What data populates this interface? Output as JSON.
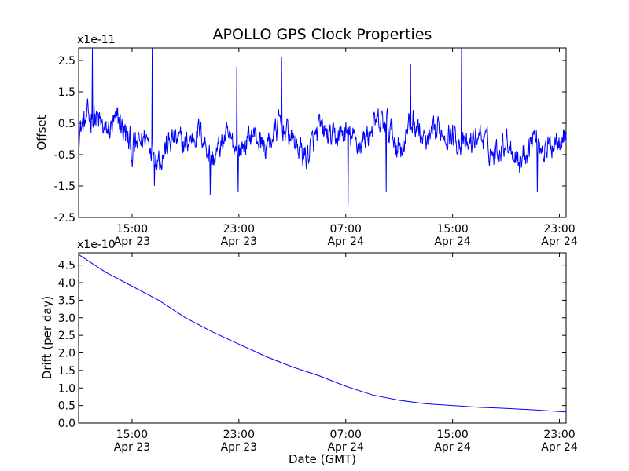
{
  "chart_data": [
    {
      "type": "line",
      "title": "APOLLO GPS Clock Properties",
      "xlabel": "",
      "ylabel": "Offset",
      "y_exponent_label": "x1e-11",
      "ylim": [
        -2.5,
        2.9
      ],
      "yticks": [
        {
          "value": -2.5,
          "label": "-2.5"
        },
        {
          "value": -1.5,
          "label": "-1.5"
        },
        {
          "value": -0.5,
          "label": "-0.5"
        },
        {
          "value": 0.5,
          "label": "0.5"
        },
        {
          "value": 1.5,
          "label": "1.5"
        },
        {
          "value": 2.5,
          "label": "2.5"
        }
      ],
      "xlim": [
        "2012-04-23T11:00",
        "2012-04-24T23:30"
      ],
      "xticks": [
        {
          "value": "2012-04-23T15:00",
          "label_time": "15:00",
          "label_date": "Apr 23"
        },
        {
          "value": "2012-04-23T23:00",
          "label_time": "23:00",
          "label_date": "Apr 23"
        },
        {
          "value": "2012-04-24T07:00",
          "label_time": "07:00",
          "label_date": "Apr 24"
        },
        {
          "value": "2012-04-24T15:00",
          "label_time": "15:00",
          "label_date": "Apr 24"
        },
        {
          "value": "2012-04-24T23:00",
          "label_time": "23:00",
          "label_date": "Apr 24"
        }
      ],
      "grid": false,
      "series": [
        {
          "color": "#0000ff",
          "x": [
            "2012-04-23T11:00",
            "2012-04-23T12:00",
            "2012-04-23T13:00",
            "2012-04-23T14:00",
            "2012-04-23T15:00",
            "2012-04-23T16:00",
            "2012-04-23T17:00",
            "2012-04-23T18:00",
            "2012-04-23T19:00",
            "2012-04-23T20:00",
            "2012-04-23T21:00",
            "2012-04-23T22:00",
            "2012-04-23T23:00",
            "2012-04-24T00:00",
            "2012-04-24T01:00",
            "2012-04-24T02:00",
            "2012-04-24T03:00",
            "2012-04-24T04:00",
            "2012-04-24T05:00",
            "2012-04-24T06:00",
            "2012-04-24T07:00",
            "2012-04-24T08:00",
            "2012-04-24T09:00",
            "2012-04-24T10:00",
            "2012-04-24T11:00",
            "2012-04-24T12:00",
            "2012-04-24T13:00",
            "2012-04-24T14:00",
            "2012-04-24T15:00",
            "2012-04-24T16:00",
            "2012-04-24T17:00",
            "2012-04-24T18:00",
            "2012-04-24T19:00",
            "2012-04-24T20:00",
            "2012-04-24T21:00",
            "2012-04-24T22:00",
            "2012-04-24T23:00",
            "2012-04-24T23:30"
          ],
          "y": [
            0.3,
            0.8,
            0.2,
            0.6,
            -0.4,
            0.1,
            -0.6,
            0.0,
            -0.2,
            0.3,
            -0.7,
            0.1,
            -0.4,
            0.2,
            -0.3,
            0.5,
            0.0,
            -0.6,
            0.3,
            0.0,
            0.2,
            -0.2,
            0.4,
            0.5,
            -0.3,
            0.6,
            -0.2,
            0.3,
            0.1,
            -0.3,
            0.2,
            -0.5,
            0.0,
            -0.7,
            0.1,
            -0.4,
            0.2,
            0.1
          ],
          "y_band": [
            0.7,
            1.1,
            0.7,
            0.9,
            1.0,
            0.7,
            0.9,
            0.8,
            0.8,
            0.7,
            0.8,
            0.7,
            0.7,
            0.7,
            0.8,
            0.8,
            0.7,
            0.8,
            0.8,
            0.7,
            0.8,
            0.7,
            0.8,
            0.9,
            0.9,
            0.8,
            0.8,
            0.8,
            0.8,
            0.7,
            0.7,
            0.8,
            0.7,
            0.9,
            0.8,
            0.8,
            0.8,
            0.7
          ],
          "spikes": [
            {
              "x": "2012-04-23T12:00",
              "y": 2.9
            },
            {
              "x": "2012-04-23T16:30",
              "y": 2.9
            },
            {
              "x": "2012-04-23T16:40",
              "y": -1.5
            },
            {
              "x": "2012-04-23T20:50",
              "y": -1.8
            },
            {
              "x": "2012-04-23T22:50",
              "y": 2.3
            },
            {
              "x": "2012-04-23T22:55",
              "y": -1.7
            },
            {
              "x": "2012-04-24T02:10",
              "y": 2.6
            },
            {
              "x": "2012-04-24T07:10",
              "y": -2.1
            },
            {
              "x": "2012-04-24T10:00",
              "y": -1.7
            },
            {
              "x": "2012-04-24T11:50",
              "y": 2.4
            },
            {
              "x": "2012-04-24T15:40",
              "y": 2.9
            },
            {
              "x": "2012-04-24T21:20",
              "y": -1.7
            }
          ]
        }
      ]
    },
    {
      "type": "line",
      "title": "",
      "xlabel": "Date (GMT)",
      "ylabel": "Drift (per day)",
      "y_exponent_label": "x1e-10",
      "ylim": [
        0.0,
        4.85
      ],
      "yticks": [
        {
          "value": 0.0,
          "label": "0.0"
        },
        {
          "value": 0.5,
          "label": "0.5"
        },
        {
          "value": 1.0,
          "label": "1.0"
        },
        {
          "value": 1.5,
          "label": "1.5"
        },
        {
          "value": 2.0,
          "label": "2.0"
        },
        {
          "value": 2.5,
          "label": "2.5"
        },
        {
          "value": 3.0,
          "label": "3.0"
        },
        {
          "value": 3.5,
          "label": "3.5"
        },
        {
          "value": 4.0,
          "label": "4.0"
        },
        {
          "value": 4.5,
          "label": "4.5"
        }
      ],
      "xlim": [
        "2012-04-23T11:00",
        "2012-04-24T23:30"
      ],
      "xticks": [
        {
          "value": "2012-04-23T15:00",
          "label_time": "15:00",
          "label_date": "Apr 23"
        },
        {
          "value": "2012-04-23T23:00",
          "label_time": "23:00",
          "label_date": "Apr 23"
        },
        {
          "value": "2012-04-24T07:00",
          "label_time": "07:00",
          "label_date": "Apr 24"
        },
        {
          "value": "2012-04-24T15:00",
          "label_time": "15:00",
          "label_date": "Apr 24"
        },
        {
          "value": "2012-04-24T23:00",
          "label_time": "23:00",
          "label_date": "Apr 24"
        }
      ],
      "grid": false,
      "series": [
        {
          "color": "#0000ff",
          "x": [
            "2012-04-23T11:00",
            "2012-04-23T13:00",
            "2012-04-23T15:00",
            "2012-04-23T17:00",
            "2012-04-23T19:00",
            "2012-04-23T21:00",
            "2012-04-23T23:00",
            "2012-04-24T01:00",
            "2012-04-24T03:00",
            "2012-04-24T05:00",
            "2012-04-24T07:00",
            "2012-04-24T09:00",
            "2012-04-24T11:00",
            "2012-04-24T13:00",
            "2012-04-24T15:00",
            "2012-04-24T17:00",
            "2012-04-24T19:00",
            "2012-04-24T21:00",
            "2012-04-24T23:00",
            "2012-04-24T23:30"
          ],
          "y": [
            4.8,
            4.3,
            3.9,
            3.5,
            3.0,
            2.6,
            2.25,
            1.9,
            1.6,
            1.35,
            1.05,
            0.8,
            0.65,
            0.55,
            0.5,
            0.45,
            0.42,
            0.38,
            0.33,
            0.32
          ]
        }
      ]
    }
  ]
}
